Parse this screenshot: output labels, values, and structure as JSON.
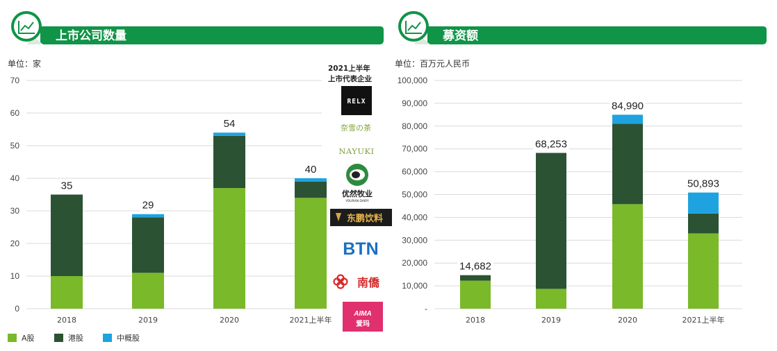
{
  "colors": {
    "a_share": "#7ab929",
    "hk_share": "#2c5234",
    "china_concept": "#1ea3e0",
    "banner_green": "#109448",
    "gridline": "#d9d9d9"
  },
  "logos": {
    "caption": "2021上半年上市代表企业",
    "items": [
      {
        "name": "RELX"
      },
      {
        "name": "奈雪の茶",
        "sub": "NAYUKI"
      },
      {
        "name": "优然牧业",
        "sub": "YOURAN DAIRY"
      },
      {
        "name": "东鹏饮料"
      },
      {
        "name": "BTN"
      },
      {
        "name": "南僑"
      },
      {
        "name": "AIMA",
        "sub": "爱玛"
      }
    ]
  },
  "chart_data": [
    {
      "type": "bar",
      "stacked": true,
      "title": "上市公司数量",
      "unit_label": "单位：家",
      "categories": [
        "2018",
        "2019",
        "2020",
        "2021上半年"
      ],
      "series": [
        {
          "name": "A股",
          "color_key": "a_share",
          "values": [
            10,
            11,
            37,
            34
          ]
        },
        {
          "name": "港股",
          "color_key": "hk_share",
          "values": [
            25,
            17,
            16,
            5
          ]
        },
        {
          "name": "中概股",
          "color_key": "china_concept",
          "values": [
            0,
            1,
            1,
            1
          ]
        }
      ],
      "totals": [
        "35",
        "29",
        "54",
        "40"
      ],
      "ylim": [
        0,
        70
      ],
      "yticks": [
        "0",
        "10",
        "20",
        "30",
        "40",
        "50",
        "60",
        "70"
      ],
      "grid": true
    },
    {
      "type": "bar",
      "stacked": true,
      "title": "募资额",
      "unit_label": "单位：百万元人民币",
      "categories": [
        "2018",
        "2019",
        "2020",
        "2021上半年"
      ],
      "series": [
        {
          "name": "A股",
          "color_key": "a_share",
          "values": [
            12300,
            8700,
            45800,
            33000
          ]
        },
        {
          "name": "港股",
          "color_key": "hk_share",
          "values": [
            2382,
            59553,
            35190,
            8700
          ]
        },
        {
          "name": "中概股",
          "color_key": "china_concept",
          "values": [
            0,
            0,
            4000,
            9193
          ]
        }
      ],
      "totals": [
        "14,682",
        "68,253",
        "84,990",
        "50,893"
      ],
      "ylim": [
        0,
        100000
      ],
      "yticks": [
        "-",
        "10,000",
        "20,000",
        "30,000",
        "40,000",
        "50,000",
        "60,000",
        "70,000",
        "80,000",
        "90,000",
        "100,000"
      ],
      "grid": true
    }
  ],
  "legend": {
    "items": [
      {
        "label": "A股",
        "color_key": "a_share"
      },
      {
        "label": "港股",
        "color_key": "hk_share"
      },
      {
        "label": "中概股",
        "color_key": "china_concept"
      }
    ],
    "position": "bottom-left"
  }
}
